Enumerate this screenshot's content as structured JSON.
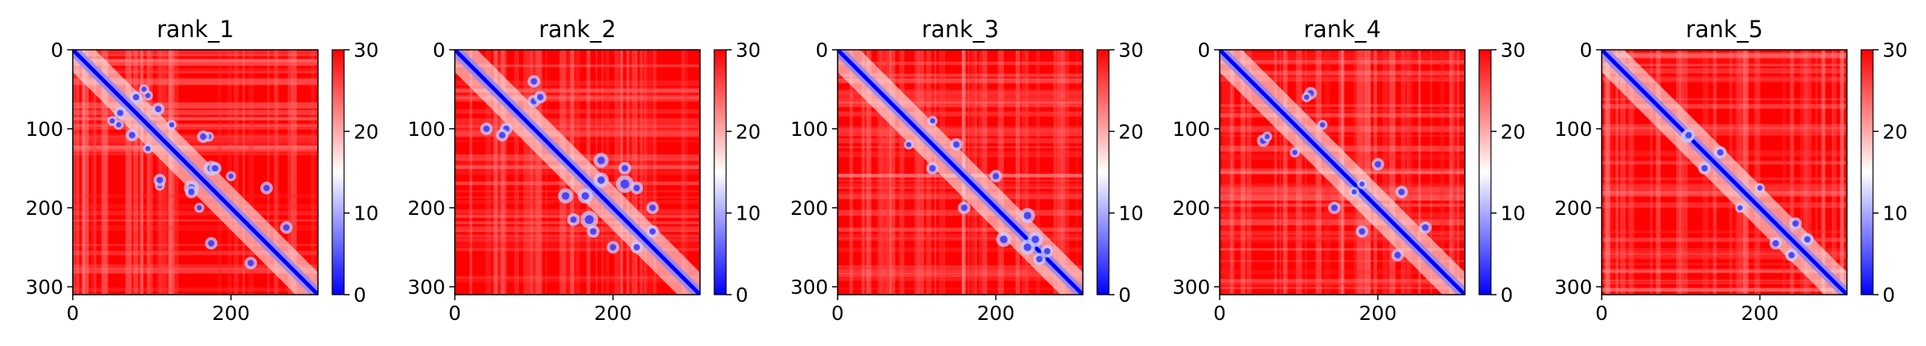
{
  "chart_data": [
    {
      "type": "heatmap",
      "title": "rank_1",
      "xticks": [
        "0",
        "200"
      ],
      "yticks": [
        "0",
        "100",
        "200",
        "300"
      ],
      "xlim": [
        0,
        310
      ],
      "ylim": [
        310,
        0
      ],
      "colorbar": {
        "ticks": [
          "0",
          "10",
          "20",
          "30"
        ],
        "range": [
          0,
          30
        ],
        "colormap": [
          "#0000ff",
          "#ffffff",
          "#ff0000"
        ]
      },
      "matrix_size": 310,
      "contact_blobs": [
        [
          58,
          95,
          4
        ],
        [
          80,
          60,
          5
        ],
        [
          108,
          75,
          5
        ],
        [
          110,
          172,
          4
        ],
        [
          165,
          110,
          5
        ],
        [
          175,
          150,
          6
        ],
        [
          150,
          180,
          5
        ],
        [
          200,
          160,
          4
        ],
        [
          245,
          175,
          5
        ],
        [
          270,
          225,
          5
        ],
        [
          90,
          50,
          4
        ],
        [
          125,
          95,
          4
        ]
      ]
    },
    {
      "type": "heatmap",
      "title": "rank_2",
      "xticks": [
        "0",
        "200"
      ],
      "yticks": [
        "0",
        "100",
        "200",
        "300"
      ],
      "xlim": [
        0,
        310
      ],
      "ylim": [
        310,
        0
      ],
      "colorbar": {
        "ticks": [
          "0",
          "10",
          "20",
          "30"
        ],
        "range": [
          0,
          30
        ],
        "colormap": [
          "#0000ff",
          "#ffffff",
          "#ff0000"
        ]
      },
      "matrix_size": 310,
      "contact_blobs": [
        [
          65,
          100,
          5
        ],
        [
          108,
          60,
          5
        ],
        [
          140,
          185,
          6
        ],
        [
          170,
          215,
          7
        ],
        [
          185,
          165,
          6
        ],
        [
          215,
          150,
          5
        ],
        [
          230,
          175,
          5
        ],
        [
          250,
          230,
          5
        ],
        [
          100,
          40,
          5
        ],
        [
          200,
          250,
          5
        ]
      ]
    },
    {
      "type": "heatmap",
      "title": "rank_3",
      "xticks": [
        "0",
        "200"
      ],
      "yticks": [
        "0",
        "100",
        "200",
        "300"
      ],
      "xlim": [
        0,
        310
      ],
      "ylim": [
        310,
        0
      ],
      "colorbar": {
        "ticks": [
          "0",
          "10",
          "20",
          "30"
        ],
        "range": [
          0,
          30
        ],
        "colormap": [
          "#0000ff",
          "#ffffff",
          "#ff0000"
        ]
      },
      "matrix_size": 310,
      "contact_blobs": [
        [
          150,
          120,
          5
        ],
        [
          200,
          160,
          5
        ],
        [
          240,
          210,
          6
        ],
        [
          250,
          240,
          6
        ],
        [
          265,
          255,
          5
        ],
        [
          120,
          90,
          4
        ]
      ]
    },
    {
      "type": "heatmap",
      "title": "rank_4",
      "xticks": [
        "0",
        "200"
      ],
      "yticks": [
        "0",
        "100",
        "200",
        "300"
      ],
      "xlim": [
        0,
        310
      ],
      "ylim": [
        310,
        0
      ],
      "colorbar": {
        "ticks": [
          "0",
          "10",
          "20",
          "30"
        ],
        "range": [
          0,
          30
        ],
        "colormap": [
          "#0000ff",
          "#ffffff",
          "#ff0000"
        ]
      },
      "matrix_size": 310,
      "contact_blobs": [
        [
          55,
          115,
          5
        ],
        [
          110,
          60,
          4
        ],
        [
          130,
          95,
          4
        ],
        [
          200,
          145,
          5
        ],
        [
          230,
          180,
          5
        ],
        [
          260,
          225,
          5
        ],
        [
          180,
          170,
          4
        ]
      ]
    },
    {
      "type": "heatmap",
      "title": "rank_5",
      "xticks": [
        "0",
        "200"
      ],
      "yticks": [
        "0",
        "100",
        "200",
        "300"
      ],
      "xlim": [
        0,
        310
      ],
      "ylim": [
        310,
        0
      ],
      "colorbar": {
        "ticks": [
          "0",
          "10",
          "20",
          "30"
        ],
        "range": [
          0,
          30
        ],
        "colormap": [
          "#0000ff",
          "#ffffff",
          "#ff0000"
        ]
      },
      "matrix_size": 310,
      "contact_blobs": [
        [
          108,
          110,
          5
        ],
        [
          150,
          130,
          5
        ],
        [
          200,
          175,
          4
        ],
        [
          245,
          220,
          5
        ],
        [
          260,
          240,
          5
        ]
      ]
    }
  ]
}
